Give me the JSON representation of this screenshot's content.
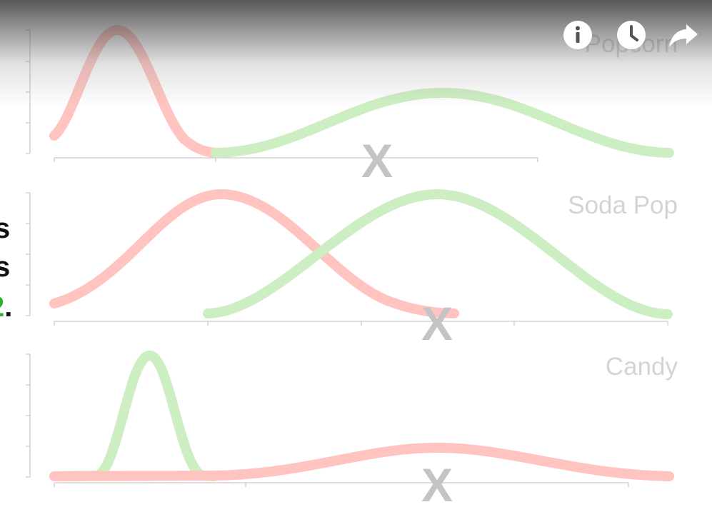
{
  "panels": [
    {
      "label": "Popcorn"
    },
    {
      "label": "Soda Pop"
    },
    {
      "label": "Candy"
    }
  ],
  "left_text": {
    "line1": "s",
    "line2": "s",
    "line3_colored": "2",
    "line3_tail": "."
  },
  "markers": {
    "x_glyph": "X"
  },
  "controls": {
    "info": "info-icon",
    "clock": "clock-icon",
    "share": "share-icon"
  },
  "colors": {
    "red_curve": "#ffc4c0",
    "green_curve": "#cdeec2",
    "axis": "#d2d2d2",
    "marker": "#c4c4c4",
    "highlight_green": "#2fae2f"
  }
}
